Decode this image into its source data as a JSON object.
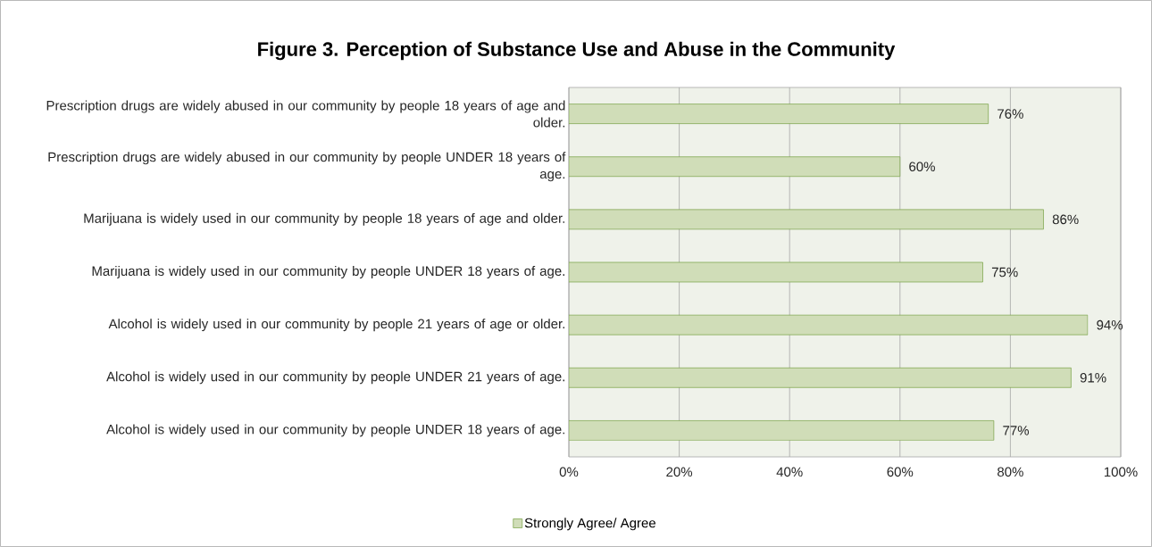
{
  "chart_data": {
    "type": "bar",
    "orientation": "horizontal",
    "title": "Figure 3. Perception of Substance Use and Abuse in the Community",
    "categories": [
      "Prescription drugs are widely abused in our community by people 18 years of age and older.",
      "Prescription drugs are widely abused in our community by people UNDER 18 years of age.",
      "Marijuana is widely used in our community by people 18 years of age and older.",
      "Marijuana is widely used in our community by people UNDER 18 years of age.",
      "Alcohol is widely used in our community by people 21 years of age or older.",
      "Alcohol is widely used in our community by people UNDER 21 years of age.",
      "Alcohol is widely used in our community by people UNDER 18 years of age."
    ],
    "series": [
      {
        "name": "Strongly Agree/ Agree",
        "color": "#d0ddb8",
        "values": [
          76,
          60,
          86,
          75,
          94,
          91,
          77
        ],
        "value_labels": [
          "76%",
          "60%",
          "86%",
          "75%",
          "94%",
          "91%",
          "77%"
        ]
      }
    ],
    "xlim": [
      0,
      100
    ],
    "xticks": [
      {
        "value": 0,
        "label": "0%"
      },
      {
        "value": 20,
        "label": "20%"
      },
      {
        "value": 40,
        "label": "40%"
      },
      {
        "value": 60,
        "label": "60%"
      },
      {
        "value": 80,
        "label": "80%"
      },
      {
        "value": 100,
        "label": "100%"
      }
    ],
    "grid": "x",
    "legend": "bottom"
  }
}
